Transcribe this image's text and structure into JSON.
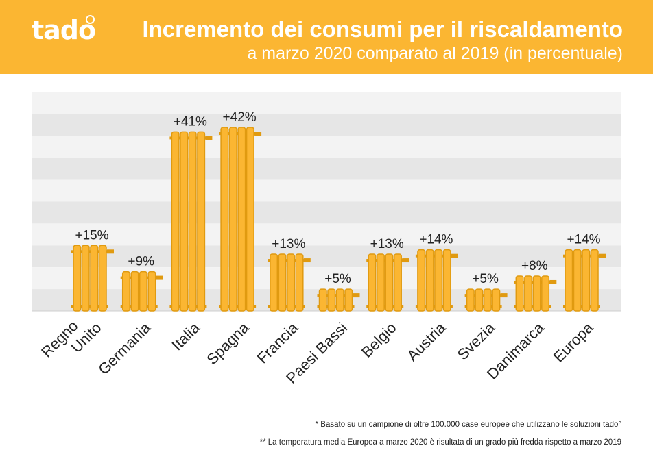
{
  "brand": {
    "name": "tado"
  },
  "header": {
    "title": "Incremento dei consumi per il riscaldamento",
    "subtitle": "a marzo 2020 comparato al 2019 (in percentuale)"
  },
  "colors": {
    "header_bg": "#fbb632",
    "bar_fill": "#fbb632",
    "bar_shade": "#e09a10",
    "stripe_dark": "#e6e6e6",
    "stripe_light": "#f3f3f3"
  },
  "chart_data": {
    "type": "bar",
    "categories": [
      "Regno Unito",
      "Germania",
      "Italia",
      "Spagna",
      "Francia",
      "Paesi Bassi",
      "Belgio",
      "Austria",
      "Svezia",
      "Danimarca",
      "Europa"
    ],
    "category_lines": [
      [
        "Regno",
        "Unito"
      ],
      [
        "Germania"
      ],
      [
        "Italia"
      ],
      [
        "Spagna"
      ],
      [
        "Francia"
      ],
      [
        "Paesi Bassi"
      ],
      [
        "Belgio"
      ],
      [
        "Austria"
      ],
      [
        "Svezia"
      ],
      [
        "Danimarca"
      ],
      [
        "Europa"
      ]
    ],
    "values": [
      15,
      9,
      41,
      42,
      13,
      5,
      13,
      14,
      5,
      8,
      14
    ],
    "labels": [
      "+15%",
      "+9%",
      "+41%",
      "+42%",
      "+13%",
      "+5%",
      "+13%",
      "+14%",
      "+5%",
      "+8%",
      "+14%"
    ],
    "ylim": [
      0,
      50
    ],
    "grid": true,
    "legend": "none"
  },
  "footnotes": [
    "* Basato su un campione di oltre 100.000 case europee che utilizzano le soluzioni tado°",
    "** La temperatura media Europea a marzo 2020 è risultata di un grado più fredda rispetto a marzo 2019"
  ]
}
